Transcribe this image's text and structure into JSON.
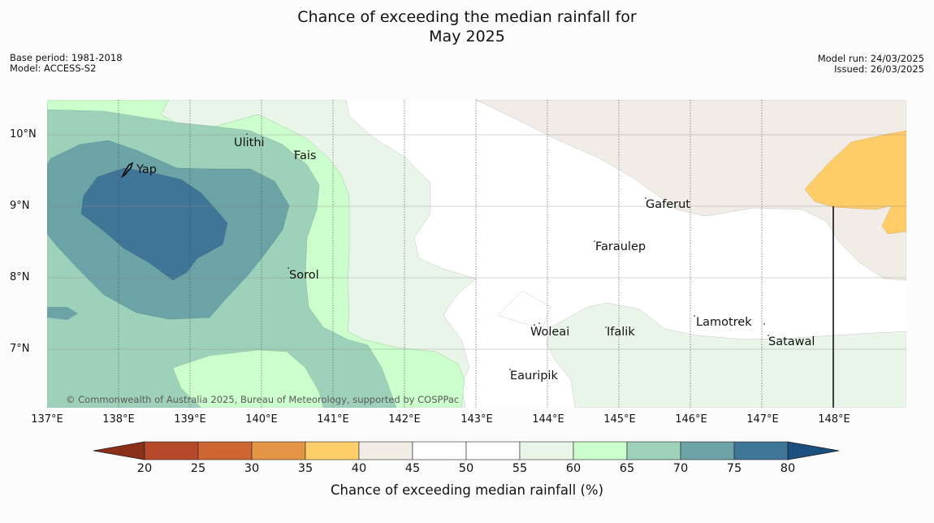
{
  "title": {
    "line1": "Chance of exceeding the median rainfall for",
    "line2": "May 2025"
  },
  "meta_left": {
    "base_period": "Base period: 1981-2018",
    "model": "Model: ACCESS-S2"
  },
  "meta_right": {
    "model_run": "Model run: 24/03/2025",
    "issued": "Issued: 26/03/2025"
  },
  "map": {
    "x_ticks": [
      "137°E",
      "138°E",
      "139°E",
      "140°E",
      "141°E",
      "142°E",
      "143°E",
      "144°E",
      "145°E",
      "146°E",
      "147°E",
      "148°E"
    ],
    "y_ticks": [
      "10°N",
      "9°N",
      "8°N",
      "7°N"
    ],
    "places": [
      "Ulithi",
      "Fais",
      "Yap",
      "Gaferut",
      "Faraulep",
      "Sorol",
      "Lamotrek",
      "Woleai",
      "Ifalik",
      "Satawal",
      "Eauripik"
    ],
    "copyright": "© Commonwealth of Australia 2025, Bureau of Meteorology, supported by COSPPac"
  },
  "colorbar": {
    "label": "Chance of exceeding median rainfall (%)",
    "ticks": [
      "20",
      "25",
      "30",
      "35",
      "40",
      "45",
      "50",
      "55",
      "60",
      "65",
      "70",
      "75",
      "80"
    ],
    "colors": [
      "#8a3018",
      "#b5492a",
      "#cf6533",
      "#e39445",
      "#ffcf6a",
      "#f1ece6",
      "#ffffff",
      "#ffffff",
      "#eaf5e9",
      "#ccfdcc",
      "#9ed1b9",
      "#6ba3a6",
      "#3f7697",
      "#1a4f80"
    ]
  }
}
